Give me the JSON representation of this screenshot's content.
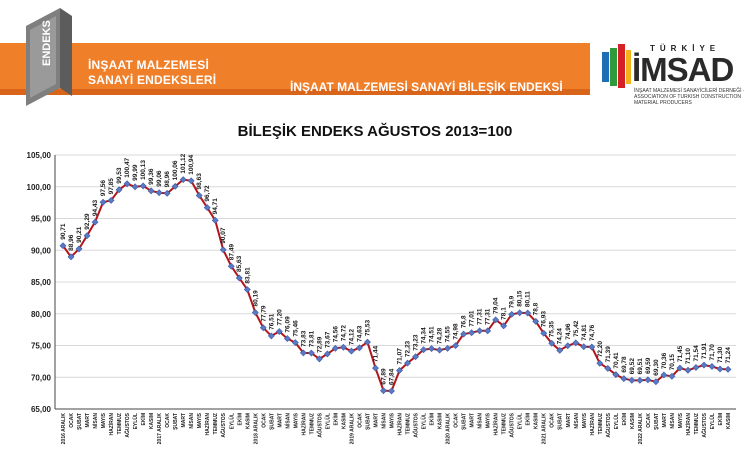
{
  "header": {
    "logo_text": "ENDEKS",
    "brand_line1": "İNŞAAT MALZEMESİ",
    "brand_line2": "SANAYİ ENDEKSLERİ",
    "title": "İNŞAAT MALZEMESİ SANAYİ BİLEŞİK ENDEKSİ",
    "org_top": "TÜRKİYE",
    "org_name": "İMSAD",
    "org_sub": "İNŞAAT MALZEMESİ SANAYİCİLERİ DERNEĞİ · ASSOCIATION OF TURKISH CONSTRUCTION MATERIAL PRODUCERS"
  },
  "colors": {
    "orange": "#f07f2a",
    "line": "#b2161b",
    "marker": "#5a7bc4",
    "grid": "#d9d9d9"
  },
  "chart_data": {
    "type": "line",
    "title": "BİLEŞİK ENDEKS AĞUSTOS 2013=100",
    "ylim": [
      65,
      105
    ],
    "yticks": [
      "65,00",
      "70,00",
      "75,00",
      "80,00",
      "85,00",
      "90,00",
      "95,00",
      "100,00",
      "105,00"
    ],
    "grid": "horizontal",
    "x": [
      "2016 ARALIK",
      "OCAK",
      "ŞUBAT",
      "MART",
      "NİSAN",
      "MAYIS",
      "HAZİRAN",
      "TEMMUZ",
      "AĞUSTOS",
      "EYLÜL",
      "EKİM",
      "KASIM",
      "2017 ARALIK",
      "OCAK",
      "ŞUBAT",
      "MART",
      "NİSAN",
      "MAYIS",
      "HAZİRAN",
      "TEMMUZ",
      "AĞUSTOS",
      "EYLÜL",
      "EKİM",
      "KASIM",
      "2018 ARALIK",
      "OCAK",
      "ŞUBAT",
      "MART",
      "NİSAN",
      "MAYIS",
      "HAZİRAN",
      "TEMMUZ",
      "AĞUSTOS",
      "EYLÜL",
      "EKİM",
      "KASIM",
      "2019 ARALIK",
      "OCAK",
      "ŞUBAT",
      "MART",
      "NİSAN",
      "MAYIS",
      "HAZİRAN",
      "TEMMUZ",
      "AĞUSTOS",
      "EYLÜL",
      "EKİM",
      "KASIM",
      "2020 ARALIK",
      "OCAK",
      "ŞUBAT",
      "MART",
      "NİSAN",
      "MAYIS",
      "HAZİRAN",
      "TEMMUZ",
      "AĞUSTOS",
      "EYLÜL",
      "EKİM",
      "KASIM",
      "2021 ARALIK",
      "OCAK",
      "ŞUBAT",
      "MART",
      "NİSAN",
      "MAYIS",
      "HAZİRAN",
      "TEMMUZ",
      "AĞUSTOS",
      "EYLÜL",
      "EKİM",
      "KASIM",
      "2022 ARALIK",
      "OCAK",
      "ŞUBAT",
      "MART",
      "NİSAN",
      "MAYIS",
      "HAZİRAN",
      "TEMMUZ",
      "AĞUSTOS",
      "EYLÜL",
      "EKİM",
      "KASIM"
    ],
    "values": [
      90.71,
      88.96,
      90.21,
      92.29,
      94.43,
      97.56,
      97.85,
      99.53,
      100.47,
      99.99,
      100.13,
      99.36,
      99.06,
      98.96,
      100.06,
      101.12,
      100.94,
      98.63,
      96.72,
      94.71,
      90.07,
      87.49,
      85.63,
      83.81,
      80.19,
      77.79,
      76.51,
      77.2,
      76.09,
      75.46,
      73.83,
      73.81,
      72.89,
      73.67,
      74.56,
      74.72,
      74.12,
      74.63,
      75.53,
      71.44,
      67.89,
      67.84,
      71.07,
      72.23,
      73.23,
      74.34,
      74.51,
      74.28,
      74.55,
      74.98,
      76.8,
      77.01,
      77.31,
      77.31,
      79.04,
      78.1,
      79.9,
      80.15,
      80.11,
      78.8,
      76.93,
      75.35,
      74.24,
      74.96,
      75.42,
      74.81,
      74.76,
      72.2,
      71.39,
      70.41,
      69.78,
      69.52,
      69.51,
      69.59,
      69.3,
      70.36,
      70.15,
      71.45,
      71.1,
      71.54,
      71.91,
      71.7,
      71.3,
      71.24
    ],
    "value_labels": [
      "90,71",
      "88,96",
      "90,21",
      "92,29",
      "94,43",
      "97,56",
      "97,85",
      "99,53",
      "100,47",
      "99,99",
      "100,13",
      "99,36",
      "99,06",
      "98,96",
      "100,06",
      "101,12",
      "100,94",
      "98,63",
      "96,72",
      "94,71",
      "90,07",
      "87,49",
      "85,63",
      "83,81",
      "80,19",
      "77,79",
      "76,51",
      "77,20",
      "76,09",
      "75,46",
      "73,83",
      "73,81",
      "72,89",
      "73,67",
      "74,56",
      "74,72",
      "74,12",
      "74,63",
      "75,53",
      "71,44",
      "67,89",
      "67,84",
      "71,07",
      "72,23",
      "73,23",
      "74,34",
      "74,51",
      "74,28",
      "74,55",
      "74,98",
      "76,8",
      "77,01",
      "77,31",
      "77,31",
      "79,04",
      "78,1",
      "79,9",
      "80,15",
      "80,11",
      "78,8",
      "76,93",
      "75,35",
      "74,24",
      "74,96",
      "75,42",
      "74,81",
      "74,76",
      "72,20",
      "71,39",
      "70,41",
      "69,78",
      "69,52",
      "69,51",
      "69,59",
      "69,30",
      "70,36",
      "70,15",
      "71,45",
      "71,10",
      "71,54",
      "71,91",
      "71,70",
      "71,30",
      "71,24"
    ]
  }
}
